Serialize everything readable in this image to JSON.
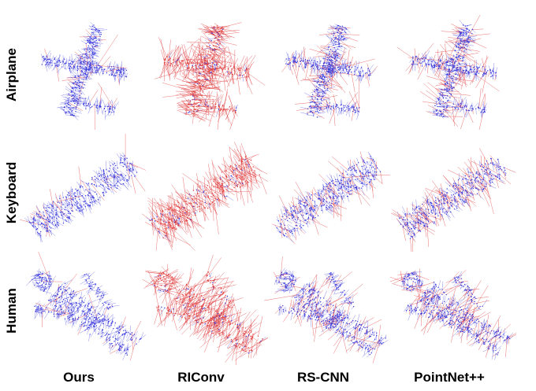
{
  "rows": [
    {
      "label": "Airplane",
      "shape": "airplane"
    },
    {
      "label": "Keyboard",
      "shape": "keyboard"
    },
    {
      "label": "Human",
      "shape": "human"
    }
  ],
  "columns": [
    {
      "label": "Ours",
      "red_ratio": 0.06
    },
    {
      "label": "RIConv",
      "red_ratio": 0.85
    },
    {
      "label": "RS-CNN",
      "red_ratio": 0.22
    },
    {
      "label": "PointNet++",
      "red_ratio": 0.35
    }
  ],
  "colors": {
    "points": "#3b3bdc",
    "correct_normals": "#4040e0",
    "wrong_normals": "#e04040"
  }
}
